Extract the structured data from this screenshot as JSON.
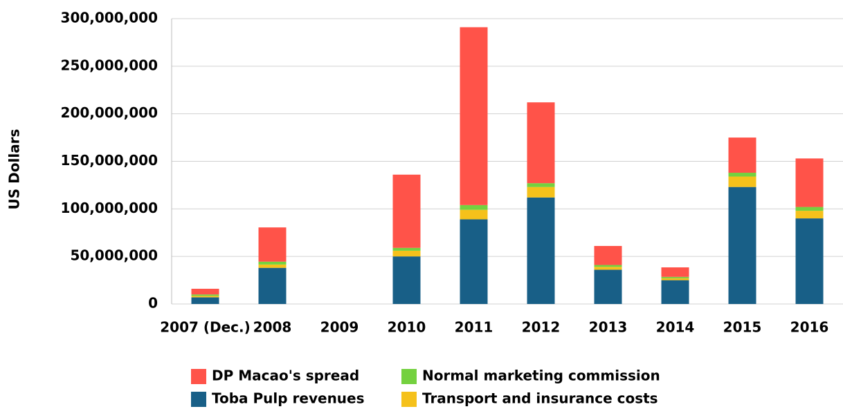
{
  "chart_data": {
    "type": "bar",
    "stacked": true,
    "y_label": "US Dollars",
    "categories": [
      "2007 (Dec.)",
      "2008",
      "2009",
      "2010",
      "2011",
      "2012",
      "2013",
      "2014",
      "2015",
      "2016"
    ],
    "series": [
      {
        "name": "Toba Pulp revenues",
        "color": "#185f87",
        "values": [
          7000000,
          38000000,
          0,
          50000000,
          89000000,
          112000000,
          36000000,
          25000000,
          123000000,
          90000000
        ]
      },
      {
        "name": "Transport and insurance costs",
        "color": "#f5c11b",
        "values": [
          1500000,
          3500000,
          0,
          6000000,
          10000000,
          11000000,
          3000000,
          2000000,
          11000000,
          8000000
        ]
      },
      {
        "name": "Normal marketing commission",
        "color": "#74d13f",
        "values": [
          1500000,
          3000000,
          0,
          3000000,
          5000000,
          4000000,
          2000000,
          1500000,
          4000000,
          4000000
        ]
      },
      {
        "name": "DP Macao's spread",
        "color": "#ff5349",
        "values": [
          6000000,
          36000000,
          0,
          77000000,
          187000000,
          85000000,
          20000000,
          10000000,
          37000000,
          51000000
        ]
      }
    ],
    "ylim": [
      0,
      300000000
    ],
    "yticks": [
      0,
      {
        "value": 50000000,
        "label": "50,000,000"
      },
      {
        "value": 100000000,
        "label": "100,000,000"
      },
      {
        "value": 150000000,
        "label": "150,000,000"
      },
      {
        "value": 200000000,
        "label": "200,000,000"
      },
      {
        "value": 250000000,
        "label": "250,000,000"
      },
      {
        "value": 300000000,
        "label": "300,000,000"
      }
    ],
    "grid": true
  }
}
